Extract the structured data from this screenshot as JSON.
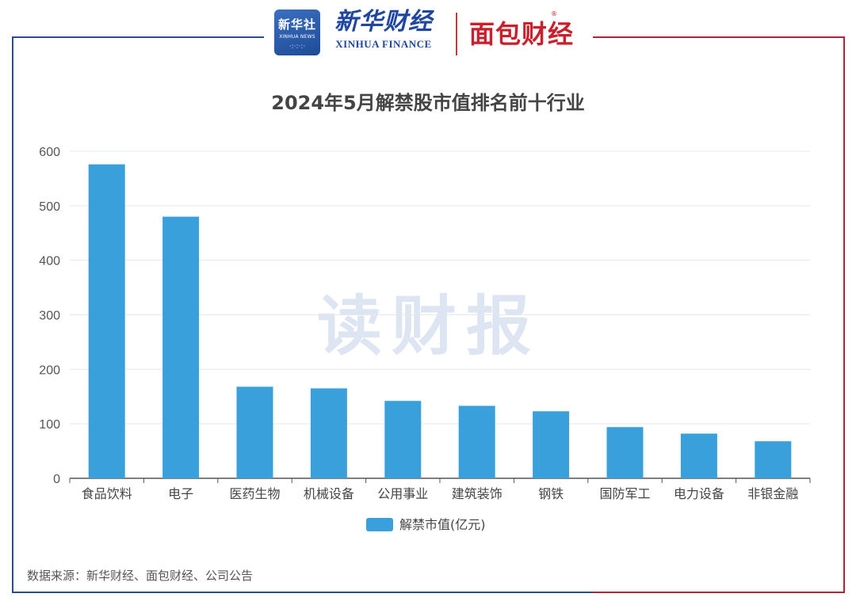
{
  "header": {
    "logo_xinhua_text": "新华社",
    "logo_xinhua_sub": "XINHUA NEWS",
    "xinhua_finance_cn": "新华财经",
    "xinhua_finance_en": "XINHUA FINANCE",
    "mianbao_text": "面包财经"
  },
  "watermark": "读财报",
  "source_note": "数据来源：新华财经、面包财经、公司公告",
  "colors": {
    "bar": "#3aa0dc",
    "frame_left": "#2a4b8d",
    "frame_right": "#b0243a",
    "grid": "#e3e8f0"
  },
  "chart_data": {
    "type": "bar",
    "title": "2024年5月解禁股市值排名前十行业",
    "categories": [
      "食品饮料",
      "电子",
      "医药生物",
      "机械设备",
      "公用事业",
      "建筑装饰",
      "钢铁",
      "国防军工",
      "电力设备",
      "非银金融"
    ],
    "series": [
      {
        "name": "解禁市值(亿元)",
        "values": [
          576,
          480,
          168,
          165,
          142,
          133,
          123,
          94,
          82,
          68
        ]
      }
    ],
    "yticks": [
      0,
      100,
      200,
      300,
      400,
      500,
      600
    ],
    "ylim": [
      0,
      600
    ],
    "grid": true,
    "legend_position": "bottom-center"
  }
}
